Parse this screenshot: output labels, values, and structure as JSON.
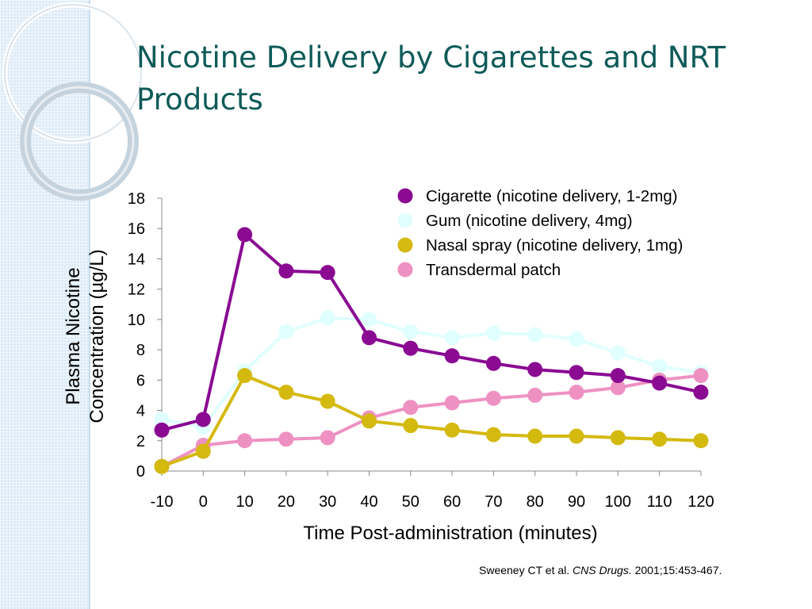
{
  "slide": {
    "title": "Nicotine Delivery by Cigarettes and NRT Products",
    "citation": {
      "authors": "Sweeney CT et al.",
      "journal": "CNS Drugs.",
      "details": "2001;15:453-467."
    }
  },
  "chart_data": {
    "type": "line",
    "title": "",
    "xlabel": "Time Post-administration (minutes)",
    "ylabel_lines": [
      "Plasma Nicotine",
      "Concentration (µg/L)"
    ],
    "x": [
      -10,
      0,
      10,
      20,
      30,
      40,
      50,
      60,
      70,
      80,
      90,
      100,
      110,
      120
    ],
    "x_tick_labels": [
      "-10",
      "0",
      "10",
      "20",
      "30",
      "40",
      "50",
      "60",
      "70",
      "80",
      "90",
      "100",
      "110",
      "120"
    ],
    "ylim": [
      0,
      18
    ],
    "y_ticks": [
      0,
      2,
      4,
      6,
      8,
      10,
      12,
      14,
      16,
      18
    ],
    "grid": false,
    "legend_position": "top-right",
    "series": [
      {
        "name": "Gum (nicotine delivery, 4mg)",
        "color": "#e0ffff",
        "values": [
          3.4,
          2.9,
          6.6,
          9.2,
          10.1,
          10.0,
          9.2,
          8.8,
          9.1,
          9.0,
          8.7,
          7.8,
          6.9,
          6.5
        ]
      },
      {
        "name": "Transdermal patch",
        "color": "#ee91c2",
        "values": [
          0.3,
          1.7,
          2.0,
          2.1,
          2.2,
          3.5,
          4.2,
          4.5,
          4.8,
          5.0,
          5.2,
          5.5,
          6.0,
          6.3
        ]
      },
      {
        "name": "Nasal spray (nicotine delivery, 1mg)",
        "color": "#d4b90f",
        "values": [
          0.3,
          1.3,
          6.3,
          5.2,
          4.6,
          3.3,
          3.0,
          2.7,
          2.4,
          2.3,
          2.3,
          2.2,
          2.1,
          2.0
        ]
      },
      {
        "name": "Cigarette (nicotine delivery, 1-2mg)",
        "color": "#8a0a92",
        "values": [
          2.7,
          3.4,
          15.6,
          13.2,
          13.1,
          8.8,
          8.1,
          7.6,
          7.1,
          6.7,
          6.5,
          6.3,
          5.8,
          5.2
        ]
      }
    ],
    "legend_order": [
      "Cigarette (nicotine delivery, 1-2mg)",
      "Gum (nicotine delivery, 4mg)",
      "Nasal spray (nicotine delivery, 1mg)",
      "Transdermal patch"
    ]
  }
}
